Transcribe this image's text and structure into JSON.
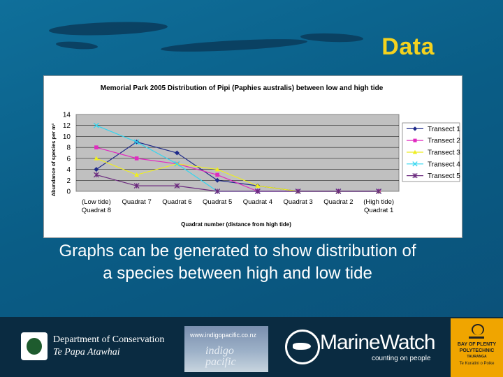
{
  "slide": {
    "title": "Data",
    "caption_line1": "Graphs can be generated to show distribution of",
    "caption_line2": "a species between high and low tide"
  },
  "chart_data": {
    "type": "line",
    "title": "Memorial Park 2005 Distribution of Pipi (Paphies australis) between low and high tide",
    "xlabel": "Quadrat number  (distance from high tide)",
    "ylabel": "Abundance of species per m²",
    "categories": [
      "(Low tide) Quadrat 8",
      "Quadrat 7",
      "Quadrat 6",
      "Quadrat 5",
      "Quadrat 4",
      "Quadrat 3",
      "Quadrat 2",
      "(High tide) Quadrat 1"
    ],
    "tick_labels": [
      {
        "top": "(Low tide)",
        "bottom": "Quadrat 8"
      },
      {
        "top": "Quadrat 7",
        "bottom": ""
      },
      {
        "top": "Quadrat 6",
        "bottom": ""
      },
      {
        "top": "Quadrat 5",
        "bottom": ""
      },
      {
        "top": "Quadrat 4",
        "bottom": ""
      },
      {
        "top": "Quadrat 3",
        "bottom": ""
      },
      {
        "top": "Quadrat 2",
        "bottom": ""
      },
      {
        "top": "(High tide)",
        "bottom": "Quadrat 1"
      }
    ],
    "ylim": [
      0,
      14
    ],
    "yticks": [
      0,
      2,
      4,
      6,
      8,
      10,
      12,
      14
    ],
    "grid": true,
    "plot_background": "#c0c0c0",
    "legend_position": "right",
    "series": [
      {
        "name": "Transect 1",
        "values": [
          4,
          9,
          7,
          2,
          1,
          0,
          0,
          0
        ],
        "color": "#1f2a8a",
        "marker": "diamond"
      },
      {
        "name": "Transect 2",
        "values": [
          8,
          6,
          5,
          3,
          0,
          0,
          0,
          0
        ],
        "color": "#e02bbf",
        "marker": "square"
      },
      {
        "name": "Transect 3",
        "values": [
          6,
          3,
          5,
          4,
          1,
          0,
          0,
          0
        ],
        "color": "#eeee22",
        "marker": "triangle"
      },
      {
        "name": "Transect 4",
        "values": [
          12,
          9,
          5,
          0,
          0,
          0,
          0,
          0
        ],
        "color": "#33d6f0",
        "marker": "x"
      },
      {
        "name": "Transect 5",
        "values": [
          3,
          1,
          1,
          0,
          0,
          0,
          0,
          0
        ],
        "color": "#6b2a7e",
        "marker": "star"
      }
    ]
  },
  "logos": {
    "doc_name": "Department of Conservation",
    "doc_tagline": "Te Papa Atawhai",
    "indigo_url": "www.indigopacific.co.nz",
    "indigo_word_1": "indigo",
    "indigo_word_2": "pacific",
    "marinewatch_name": "MarineWatch",
    "marinewatch_tagline": "counting on people",
    "bop_line1": "BAY OF PLENTY",
    "bop_line2": "POLYTECHNIC",
    "bop_line3": "TAURANGA",
    "bop_line4": "Te Kuratini o Poike"
  },
  "colors": {
    "title": "#f4d21e",
    "caption": "#ffffff",
    "logo_bar": "#0a2b41",
    "bop": "#f0a500"
  },
  "icons": [
    "doc-emblem-icon",
    "marinewatch-diver-icon",
    "bop-polytechnic-icon"
  ]
}
